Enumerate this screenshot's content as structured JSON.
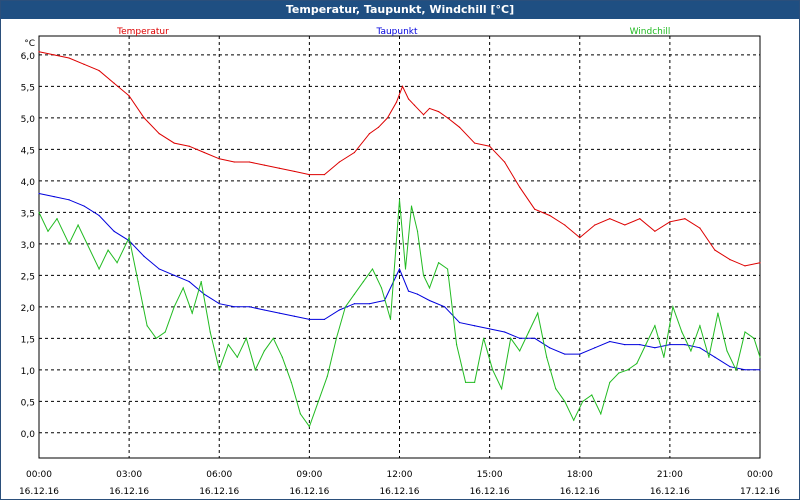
{
  "window": {
    "title": "Temperatur, Taupunkt, Windchill [°C]"
  },
  "chart_data": {
    "type": "line",
    "title": "Temperatur, Taupunkt, Windchill [°C]",
    "ylabel": "°C",
    "ylim": [
      -0.4,
      6.3
    ],
    "yticks": [
      "0,0",
      "0,5",
      "1,0",
      "1,5",
      "2,0",
      "2,5",
      "3,0",
      "3,5",
      "4,0",
      "4,5",
      "5,0",
      "5,5",
      "6,0"
    ],
    "xlim": [
      0,
      24
    ],
    "xticks": [
      {
        "time": "00:00",
        "date": "16.12.16"
      },
      {
        "time": "03:00",
        "date": "16.12.16"
      },
      {
        "time": "06:00",
        "date": "16.12.16"
      },
      {
        "time": "09:00",
        "date": "16.12.16"
      },
      {
        "time": "12:00",
        "date": "16.12.16"
      },
      {
        "time": "15:00",
        "date": "16.12.16"
      },
      {
        "time": "18:00",
        "date": "16.12.16"
      },
      {
        "time": "21:00",
        "date": "16.12.16"
      },
      {
        "time": "00:00",
        "date": "17.12.16"
      }
    ],
    "grid": true,
    "series": [
      {
        "name": "Temperatur",
        "color": "#dd0000",
        "x": [
          0,
          0.5,
          1,
          1.5,
          2,
          2.5,
          3,
          3.5,
          4,
          4.5,
          5,
          5.5,
          6,
          6.5,
          7,
          7.5,
          8,
          8.5,
          9,
          9.5,
          10,
          10.5,
          11,
          11.3,
          11.6,
          11.9,
          12.1,
          12.3,
          12.5,
          12.8,
          13,
          13.3,
          13.6,
          14,
          14.5,
          15,
          15.5,
          16,
          16.5,
          17,
          17.5,
          18,
          18.5,
          19,
          19.5,
          20,
          20.5,
          21,
          21.5,
          22,
          22.5,
          23,
          23.5,
          24
        ],
        "y": [
          6.05,
          6.0,
          5.95,
          5.85,
          5.75,
          5.55,
          5.35,
          5.0,
          4.75,
          4.6,
          4.55,
          4.45,
          4.35,
          4.3,
          4.3,
          4.25,
          4.2,
          4.15,
          4.1,
          4.1,
          4.3,
          4.45,
          4.75,
          4.85,
          5.0,
          5.25,
          5.5,
          5.3,
          5.2,
          5.05,
          5.15,
          5.1,
          5.0,
          4.85,
          4.6,
          4.55,
          4.3,
          3.9,
          3.55,
          3.45,
          3.3,
          3.1,
          3.3,
          3.4,
          3.3,
          3.4,
          3.2,
          3.35,
          3.4,
          3.25,
          2.9,
          2.75,
          2.65,
          2.7
        ]
      },
      {
        "name": "Taupunkt",
        "color": "#0000dd",
        "x": [
          0,
          0.5,
          1,
          1.5,
          2,
          2.5,
          3,
          3.5,
          4,
          4.5,
          5,
          5.5,
          6,
          6.5,
          7,
          7.5,
          8,
          8.5,
          9,
          9.5,
          10,
          10.5,
          11,
          11.5,
          12,
          12.3,
          12.6,
          13,
          13.5,
          14,
          14.5,
          15,
          15.5,
          16,
          16.5,
          17,
          17.5,
          18,
          18.5,
          19,
          19.5,
          20,
          20.5,
          21,
          21.5,
          22,
          22.5,
          23,
          23.5,
          24
        ],
        "y": [
          3.8,
          3.75,
          3.7,
          3.6,
          3.45,
          3.2,
          3.05,
          2.8,
          2.6,
          2.5,
          2.4,
          2.2,
          2.05,
          2.0,
          2.0,
          1.95,
          1.9,
          1.85,
          1.8,
          1.8,
          1.95,
          2.05,
          2.05,
          2.1,
          2.6,
          2.25,
          2.2,
          2.1,
          2.0,
          1.75,
          1.7,
          1.65,
          1.6,
          1.5,
          1.5,
          1.35,
          1.25,
          1.25,
          1.35,
          1.45,
          1.4,
          1.4,
          1.35,
          1.4,
          1.4,
          1.35,
          1.2,
          1.05,
          1.0,
          1.0
        ]
      },
      {
        "name": "Windchill",
        "color": "#22bb22",
        "x": [
          0,
          0.3,
          0.6,
          1,
          1.3,
          1.6,
          2,
          2.3,
          2.6,
          3,
          3.3,
          3.6,
          3.9,
          4.2,
          4.5,
          4.8,
          5.1,
          5.4,
          5.7,
          6,
          6.3,
          6.6,
          6.9,
          7.2,
          7.5,
          7.8,
          8.1,
          8.4,
          8.7,
          9,
          9.3,
          9.6,
          9.9,
          10.2,
          10.5,
          10.8,
          11.1,
          11.4,
          11.7,
          12,
          12.2,
          12.4,
          12.6,
          12.8,
          13,
          13.3,
          13.6,
          13.9,
          14.2,
          14.5,
          14.8,
          15.1,
          15.4,
          15.7,
          16,
          16.3,
          16.6,
          16.9,
          17.2,
          17.5,
          17.8,
          18.1,
          18.4,
          18.7,
          19,
          19.3,
          19.6,
          19.9,
          20.2,
          20.5,
          20.8,
          21.1,
          21.4,
          21.7,
          22,
          22.3,
          22.6,
          22.9,
          23.2,
          23.5,
          23.8,
          24
        ],
        "y": [
          3.5,
          3.2,
          3.4,
          3.0,
          3.3,
          3.0,
          2.6,
          2.9,
          2.7,
          3.1,
          2.4,
          1.7,
          1.5,
          1.6,
          2.0,
          2.3,
          1.9,
          2.4,
          1.6,
          1.0,
          1.4,
          1.2,
          1.5,
          1.0,
          1.3,
          1.5,
          1.2,
          0.8,
          0.3,
          0.1,
          0.5,
          0.9,
          1.5,
          2.0,
          2.2,
          2.4,
          2.6,
          2.3,
          1.8,
          3.7,
          2.6,
          3.6,
          3.2,
          2.5,
          2.3,
          2.7,
          2.6,
          1.4,
          0.8,
          0.8,
          1.5,
          1.0,
          0.7,
          1.5,
          1.3,
          1.6,
          1.9,
          1.2,
          0.7,
          0.5,
          0.2,
          0.5,
          0.6,
          0.3,
          0.8,
          0.95,
          1.0,
          1.1,
          1.4,
          1.7,
          1.2,
          2.0,
          1.6,
          1.3,
          1.7,
          1.2,
          1.9,
          1.3,
          1.0,
          1.6,
          1.5,
          1.2
        ]
      }
    ]
  }
}
